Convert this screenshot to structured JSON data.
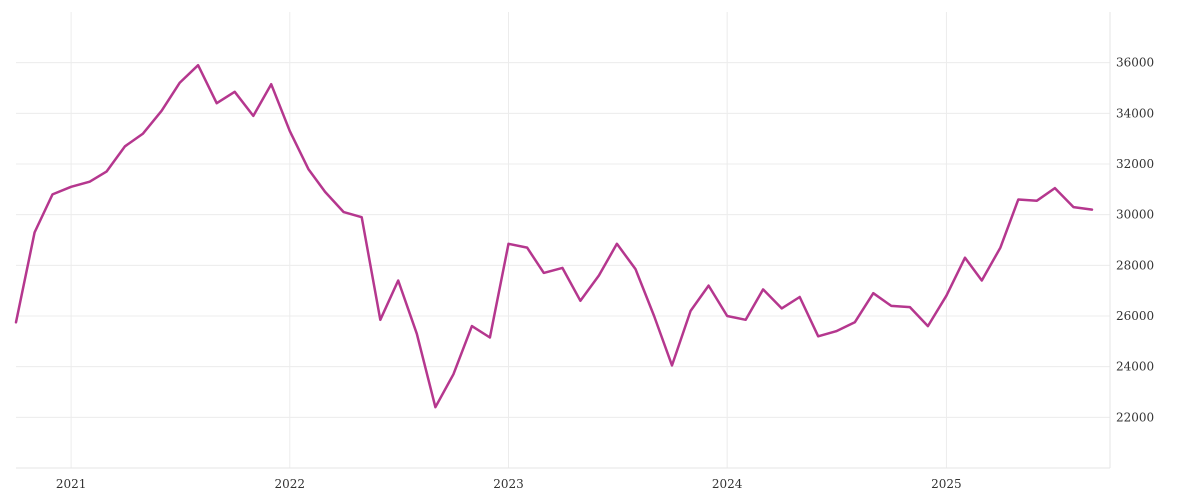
{
  "chart_data": {
    "type": "line",
    "title": "",
    "xlabel": "",
    "ylabel": "",
    "xlim": [
      "2020-10-01",
      "2025-10-01"
    ],
    "ylim": [
      20000,
      38000
    ],
    "y_axis_position": "right",
    "grid": true,
    "legend": "none",
    "x_ticks": [
      {
        "date": "2021-01-01",
        "label": "2021"
      },
      {
        "date": "2022-01-01",
        "label": "2022"
      },
      {
        "date": "2023-01-01",
        "label": "2023"
      },
      {
        "date": "2024-01-01",
        "label": "2024"
      },
      {
        "date": "2025-01-01",
        "label": "2025"
      }
    ],
    "y_ticks": [
      22000,
      24000,
      26000,
      28000,
      30000,
      32000,
      34000,
      36000
    ],
    "series": [
      {
        "color": "#b5378e",
        "x": [
          "2020-10-01",
          "2020-11-01",
          "2020-12-01",
          "2021-01-01",
          "2021-02-01",
          "2021-03-01",
          "2021-04-01",
          "2021-05-01",
          "2021-06-01",
          "2021-07-01",
          "2021-08-01",
          "2021-09-01",
          "2021-10-01",
          "2021-11-01",
          "2021-12-01",
          "2022-01-01",
          "2022-02-01",
          "2022-03-01",
          "2022-04-01",
          "2022-05-01",
          "2022-06-01",
          "2022-07-01",
          "2022-08-01",
          "2022-09-01",
          "2022-10-01",
          "2022-11-01",
          "2022-12-01",
          "2023-01-01",
          "2023-02-01",
          "2023-03-01",
          "2023-04-01",
          "2023-05-01",
          "2023-06-01",
          "2023-07-01",
          "2023-08-01",
          "2023-09-01",
          "2023-10-01",
          "2023-11-01",
          "2023-12-01",
          "2024-01-01",
          "2024-02-01",
          "2024-03-01",
          "2024-04-01",
          "2024-05-01",
          "2024-06-01",
          "2024-07-01",
          "2024-08-01",
          "2024-09-01",
          "2024-10-01",
          "2024-11-01",
          "2024-12-01",
          "2025-01-01",
          "2025-02-01",
          "2025-03-01",
          "2025-04-01",
          "2025-05-01",
          "2025-06-01",
          "2025-07-01",
          "2025-08-01",
          "2025-09-01"
        ],
        "values": [
          25750,
          29300,
          30800,
          31100,
          31300,
          31700,
          32700,
          33200,
          34100,
          35200,
          35900,
          34400,
          34850,
          33900,
          35150,
          33300,
          31800,
          30900,
          30100,
          29900,
          25850,
          27400,
          25300,
          22400,
          23700,
          25600,
          25150,
          28850,
          28700,
          27700,
          27900,
          26600,
          27600,
          28850,
          27850,
          26000,
          24050,
          26200,
          27200,
          26000,
          25850,
          27050,
          26300,
          26750,
          25200,
          25400,
          25750,
          26900,
          26400,
          26350,
          25600,
          26800,
          28300,
          27400,
          28700,
          30600,
          30550,
          31050,
          30300,
          30200
        ]
      }
    ]
  }
}
